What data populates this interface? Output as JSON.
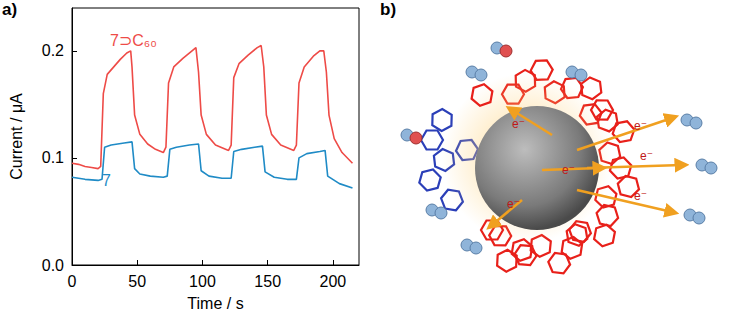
{
  "chart_data": {
    "type": "line",
    "x_label": "Time / s",
    "y_label": "Current / μA",
    "xlim": [
      0,
      220
    ],
    "xticks": [
      0,
      50,
      100,
      150,
      200
    ],
    "ylim": [
      0,
      0.24
    ],
    "yticks": [
      {
        "value": 0,
        "label": "0.0"
      },
      0.1,
      0.2
    ],
    "grid": false,
    "series": [
      {
        "name": "7⊃C₆₀",
        "color": "#ee4b47",
        "x": [
          0,
          5,
          10,
          15,
          20,
          22,
          24,
          27,
          32,
          37,
          42,
          45,
          46,
          48,
          52,
          58,
          64,
          70,
          72,
          74,
          78,
          85,
          92,
          95,
          97,
          99,
          103,
          110,
          120,
          122,
          124,
          128,
          135,
          142,
          145,
          147,
          149,
          153,
          160,
          170,
          172,
          174,
          178,
          185,
          190,
          193,
          195,
          197,
          201,
          207,
          215
        ],
        "values": [
          0.095,
          0.094,
          0.092,
          0.091,
          0.09,
          0.092,
          0.16,
          0.178,
          0.185,
          0.192,
          0.198,
          0.2,
          0.185,
          0.14,
          0.122,
          0.113,
          0.108,
          0.105,
          0.11,
          0.17,
          0.185,
          0.193,
          0.2,
          0.203,
          0.18,
          0.14,
          0.122,
          0.112,
          0.107,
          0.112,
          0.175,
          0.188,
          0.196,
          0.203,
          0.205,
          0.185,
          0.14,
          0.122,
          0.112,
          0.107,
          0.112,
          0.17,
          0.185,
          0.195,
          0.2,
          0.2,
          0.18,
          0.14,
          0.118,
          0.105,
          0.095
        ]
      },
      {
        "name": "7",
        "color": "#1f8bc6",
        "x": [
          0,
          10,
          20,
          23,
          25,
          30,
          40,
          46,
          48,
          52,
          60,
          70,
          73,
          75,
          80,
          90,
          97,
          99,
          105,
          115,
          122,
          124,
          130,
          140,
          146,
          148,
          155,
          165,
          172,
          174,
          180,
          190,
          194,
          196,
          205,
          215
        ],
        "values": [
          0.082,
          0.08,
          0.079,
          0.08,
          0.11,
          0.112,
          0.114,
          0.115,
          0.09,
          0.085,
          0.083,
          0.082,
          0.083,
          0.108,
          0.11,
          0.112,
          0.113,
          0.088,
          0.083,
          0.081,
          0.081,
          0.106,
          0.108,
          0.11,
          0.111,
          0.087,
          0.082,
          0.08,
          0.08,
          0.1,
          0.104,
          0.106,
          0.107,
          0.083,
          0.076,
          0.072
        ]
      }
    ]
  },
  "panel_labels": [
    "a)",
    "b)"
  ],
  "illustration": {
    "electron_labels": [
      "e⁻",
      "e⁻",
      "e⁻",
      "e⁻",
      "e⁻",
      "e⁻"
    ]
  }
}
